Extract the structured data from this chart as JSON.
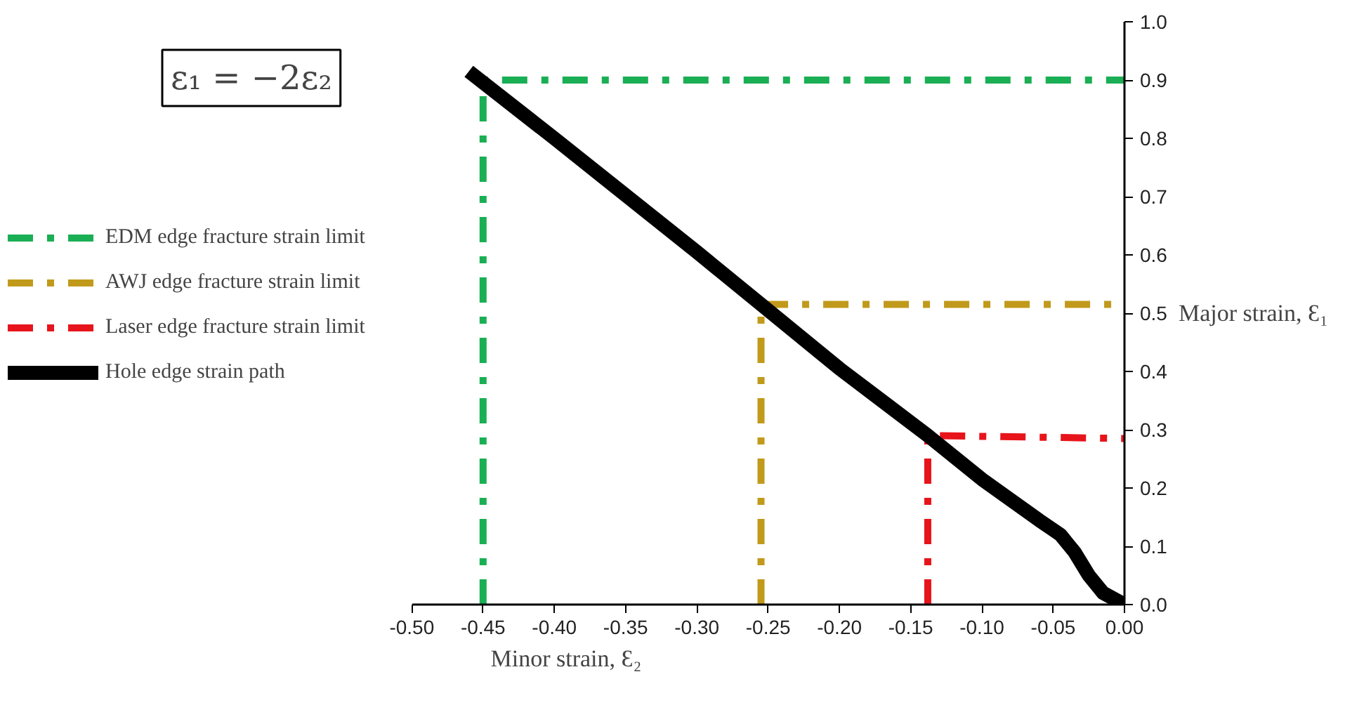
{
  "chart_data": {
    "type": "line",
    "xlabel": "Minor strain, Ɛ₂",
    "ylabel": "Major strain, Ɛ₁",
    "annotations": [
      "ε₁ = −2ε₂"
    ],
    "series": [
      {
        "name": "EDM edge fracture strain limit",
        "color": "#1aaf54",
        "line_style": "dashdot",
        "x": [
          -0.45,
          -0.45,
          0.0
        ],
        "values": [
          0.0,
          0.9,
          0.9
        ]
      },
      {
        "name": "AWJ edge fracture strain limit",
        "color": "#c19a1b",
        "line_style": "dashdot",
        "x": [
          -0.255,
          -0.255,
          0.0
        ],
        "values": [
          0.0,
          0.515,
          0.515
        ]
      },
      {
        "name": "Laser edge fracture strain limit",
        "color": "#e8141b",
        "line_style": "dashdot",
        "x": [
          -0.138,
          -0.138,
          0.0
        ],
        "values": [
          0.0,
          0.29,
          0.285
        ]
      },
      {
        "name": "Hole edge strain path",
        "color": "#000000",
        "line_style": "solid",
        "x": [
          -0.46,
          -0.4,
          -0.3,
          -0.255,
          -0.2,
          -0.138,
          -0.1,
          -0.06,
          -0.045,
          -0.035,
          -0.025,
          -0.015,
          0.0
        ],
        "values": [
          0.915,
          0.8,
          0.605,
          0.515,
          0.405,
          0.29,
          0.215,
          0.145,
          0.12,
          0.09,
          0.05,
          0.02,
          0.0
        ]
      }
    ],
    "xlim": [
      -0.5,
      0.0
    ],
    "ylim": [
      0.0,
      1.0
    ],
    "xticks": [
      {
        "value": -0.5,
        "label": "-0.50"
      },
      {
        "value": -0.45,
        "label": "-0.45"
      },
      {
        "value": -0.4,
        "label": "-0.40"
      },
      {
        "value": -0.35,
        "label": "-0.35"
      },
      {
        "value": -0.3,
        "label": "-0.30"
      },
      {
        "value": -0.25,
        "label": "-0.25"
      },
      {
        "value": -0.2,
        "label": "-0.20"
      },
      {
        "value": -0.15,
        "label": "-0.15"
      },
      {
        "value": -0.1,
        "label": "-0.10"
      },
      {
        "value": -0.05,
        "label": "-0.05"
      },
      {
        "value": 0.0,
        "label": "0.00"
      }
    ],
    "yticks": [
      {
        "value": 0.0,
        "label": "0.0"
      },
      {
        "value": 0.1,
        "label": "0.1"
      },
      {
        "value": 0.2,
        "label": "0.2"
      },
      {
        "value": 0.3,
        "label": "0.3"
      },
      {
        "value": 0.4,
        "label": "0.4"
      },
      {
        "value": 0.5,
        "label": "0.5"
      },
      {
        "value": 0.6,
        "label": "0.6"
      },
      {
        "value": 0.7,
        "label": "0.7"
      },
      {
        "value": 0.8,
        "label": "0.8"
      },
      {
        "value": 0.9,
        "label": "0.9"
      },
      {
        "value": 1.0,
        "label": "1.0"
      }
    ],
    "grid": false,
    "legend": "left",
    "marker": "none"
  }
}
